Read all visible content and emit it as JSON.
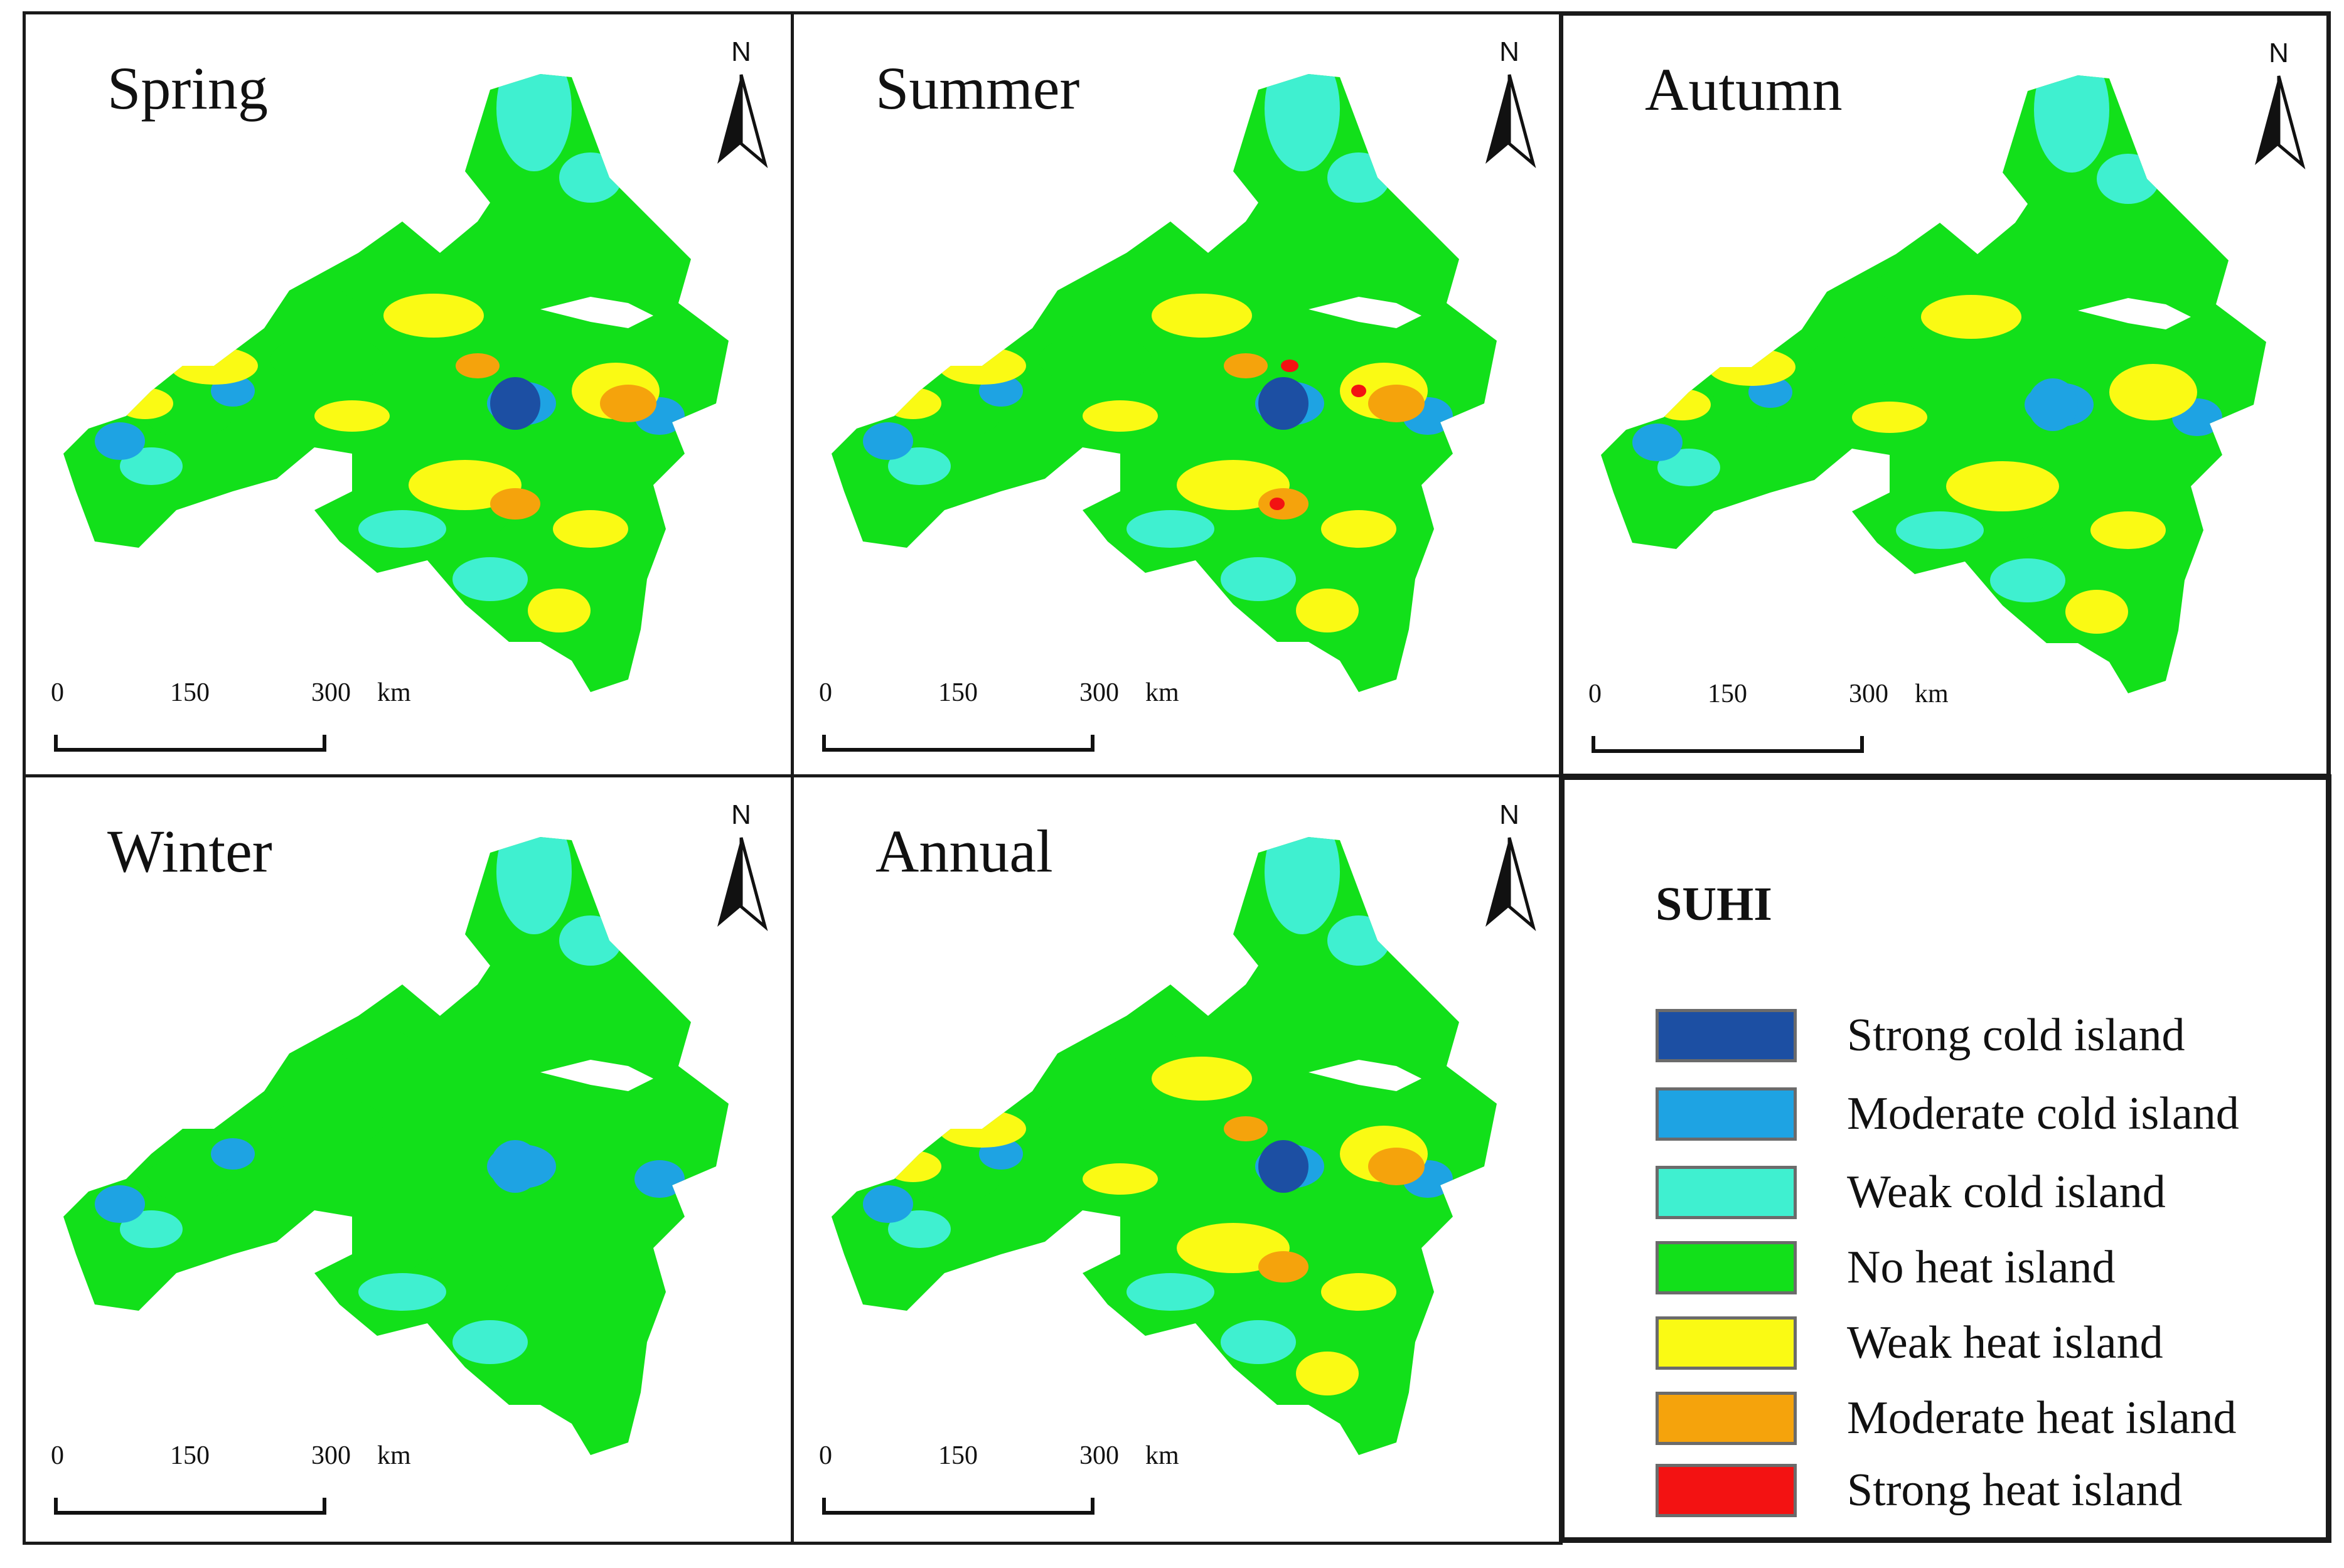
{
  "panels": [
    {
      "title": "Spring",
      "north_label": "N",
      "scale": {
        "labels": [
          "0",
          "150",
          "300"
        ],
        "unit": "km"
      }
    },
    {
      "title": "Summer",
      "north_label": "N",
      "scale": {
        "labels": [
          "0",
          "150",
          "300"
        ],
        "unit": "km"
      }
    },
    {
      "title": "Autumn",
      "north_label": "N",
      "scale": {
        "labels": [
          "0",
          "150",
          "300"
        ],
        "unit": "km"
      }
    },
    {
      "title": "Winter",
      "north_label": "N",
      "scale": {
        "labels": [
          "0",
          "150",
          "300"
        ],
        "unit": "km"
      }
    },
    {
      "title": "Annual",
      "north_label": "N",
      "scale": {
        "labels": [
          "0",
          "150",
          "300"
        ],
        "unit": "km"
      }
    }
  ],
  "legend": {
    "title": "SUHI",
    "items": [
      {
        "label": "Strong cold island",
        "color": "#1c4fa3"
      },
      {
        "label": "Moderate cold island",
        "color": "#1ea3e3"
      },
      {
        "label": "Weak cold island",
        "color": "#3ff0d0"
      },
      {
        "label": "No heat island",
        "color": "#12e01a"
      },
      {
        "label": "Weak heat island",
        "color": "#fafa14"
      },
      {
        "label": "Moderate heat island",
        "color": "#f5a30c"
      },
      {
        "label": "Strong heat island",
        "color": "#f31212"
      }
    ]
  }
}
